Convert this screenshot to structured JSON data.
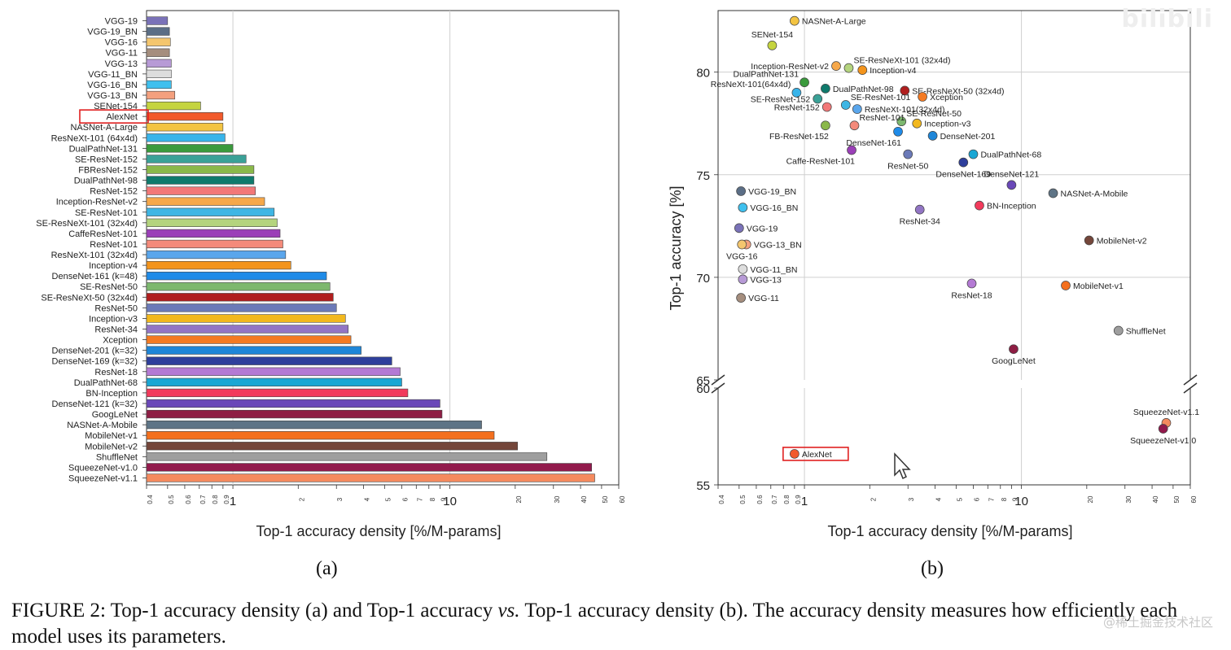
{
  "figure": {
    "subfig_a_label": "(a)",
    "subfig_b_label": "(b)",
    "caption_part1": "FIGURE 2: Top-1 accuracy density (a) and Top-1 accuracy ",
    "caption_vs": "vs.",
    "caption_part2": " Top-1 accuracy density (b). The accuracy density measures how efficiently each model uses its parameters.",
    "watermark_logo": "bilibili",
    "watermark_text": "@稀土掘金技术社区"
  },
  "chart_data": [
    {
      "type": "bar",
      "orientation": "horizontal",
      "xlabel": "Top-1 accuracy density [%/M-params]",
      "ylabel": "",
      "xscale": "log",
      "xlim": [
        0.4,
        60
      ],
      "x_ticks": [
        0.4,
        0.5,
        0.6,
        0.7,
        0.8,
        0.9,
        1,
        2,
        3,
        4,
        5,
        6,
        7,
        8,
        9,
        10,
        20,
        30,
        40,
        50,
        60
      ],
      "grid": "vertical at 1 and 10",
      "highlighted": "AlexNet",
      "bars": [
        {
          "name": "VGG-19",
          "value": 0.5,
          "color": "#7a72b8"
        },
        {
          "name": "VGG-19_BN",
          "value": 0.51,
          "color": "#5b6e86"
        },
        {
          "name": "VGG-16",
          "value": 0.515,
          "color": "#f4c66e"
        },
        {
          "name": "VGG-11",
          "value": 0.51,
          "color": "#a58e7e"
        },
        {
          "name": "VGG-13",
          "value": 0.52,
          "color": "#b79ad6"
        },
        {
          "name": "VGG-11_BN",
          "value": 0.52,
          "color": "#dddddd"
        },
        {
          "name": "VGG-16_BN",
          "value": 0.52,
          "color": "#3fc0ee"
        },
        {
          "name": "VGG-13_BN",
          "value": 0.54,
          "color": "#f4a07e"
        },
        {
          "name": "SENet-154",
          "value": 0.71,
          "color": "#c5d43f"
        },
        {
          "name": "AlexNet",
          "value": 0.9,
          "color": "#f25a2b"
        },
        {
          "name": "NASNet-A-Large",
          "value": 0.9,
          "color": "#f3c442"
        },
        {
          "name": "ResNeXt-101 (64x4d)",
          "value": 0.92,
          "color": "#38b4ea"
        },
        {
          "name": "DualPathNet-131",
          "value": 1.0,
          "color": "#3a9a3c"
        },
        {
          "name": "SE-ResNet-152",
          "value": 1.15,
          "color": "#3aa197"
        },
        {
          "name": "FBResNet-152",
          "value": 1.25,
          "color": "#8ab84a"
        },
        {
          "name": "DualPathNet-98",
          "value": 1.25,
          "color": "#0f7a6c"
        },
        {
          "name": "ResNet-152",
          "value": 1.27,
          "color": "#f27878"
        },
        {
          "name": "Inception-ResNet-v2",
          "value": 1.4,
          "color": "#f6a84a"
        },
        {
          "name": "SE-ResNet-101",
          "value": 1.55,
          "color": "#3fb6e4"
        },
        {
          "name": "SE-ResNeXt-101 (32x4d)",
          "value": 1.6,
          "color": "#b4d47e"
        },
        {
          "name": "CaffeResNet-101",
          "value": 1.65,
          "color": "#9b3fb8"
        },
        {
          "name": "ResNet-101",
          "value": 1.7,
          "color": "#f48a7a"
        },
        {
          "name": "ResNeXt-101 (32x4d)",
          "value": 1.75,
          "color": "#5aa6ec"
        },
        {
          "name": "Inception-v4",
          "value": 1.85,
          "color": "#f3941c"
        },
        {
          "name": "DenseNet-161 (k=48)",
          "value": 2.7,
          "color": "#1f8be8"
        },
        {
          "name": "SE-ResNet-50",
          "value": 2.8,
          "color": "#7db86e"
        },
        {
          "name": "SE-ResNeXt-50 (32x4d)",
          "value": 2.9,
          "color": "#b01e1e"
        },
        {
          "name": "ResNet-50",
          "value": 3.0,
          "color": "#6b7ab8"
        },
        {
          "name": "Inception-v3",
          "value": 3.3,
          "color": "#f2b81e"
        },
        {
          "name": "ResNet-34",
          "value": 3.4,
          "color": "#9275c4"
        },
        {
          "name": "Xception",
          "value": 3.5,
          "color": "#f47a22"
        },
        {
          "name": "DenseNet-201 (k=32)",
          "value": 3.9,
          "color": "#1e86d8"
        },
        {
          "name": "DenseNet-169 (k=32)",
          "value": 5.4,
          "color": "#2e3f9c"
        },
        {
          "name": "ResNet-18",
          "value": 5.9,
          "color": "#b47ad4"
        },
        {
          "name": "DualPathNet-68",
          "value": 6.0,
          "color": "#1aa7d4"
        },
        {
          "name": "BN-Inception",
          "value": 6.4,
          "color": "#f23a5c"
        },
        {
          "name": "DenseNet-121 (k=32)",
          "value": 9.0,
          "color": "#6a48b8"
        },
        {
          "name": "GoogLeNet",
          "value": 9.2,
          "color": "#8e1e44"
        },
        {
          "name": "NASNet-A-Mobile",
          "value": 14.0,
          "color": "#5e7486"
        },
        {
          "name": "MobileNet-v1",
          "value": 16.0,
          "color": "#f4701e"
        },
        {
          "name": "MobileNet-v2",
          "value": 20.5,
          "color": "#74463a"
        },
        {
          "name": "ShuffleNet",
          "value": 28.0,
          "color": "#9e9e9e"
        },
        {
          "name": "SqueezeNet-v1.0",
          "value": 45.0,
          "color": "#921a4c"
        },
        {
          "name": "SqueezeNet-v1.1",
          "value": 46.5,
          "color": "#f48a5e"
        }
      ]
    },
    {
      "type": "scatter",
      "xlabel": "Top-1 accuracy density [%/M-params]",
      "ylabel": "Top-1 accuracy [%]",
      "xscale": "log",
      "xlim": [
        0.4,
        60
      ],
      "x_ticks": [
        0.4,
        0.5,
        0.6,
        0.7,
        0.8,
        0.9,
        1,
        2,
        3,
        4,
        5,
        6,
        7,
        8,
        9,
        10,
        20,
        30,
        40,
        50,
        60
      ],
      "y_axis_break": true,
      "ylim_upper": [
        65,
        83
      ],
      "ylim_lower": [
        55,
        60
      ],
      "y_ticks_upper": [
        65,
        70,
        75,
        80
      ],
      "y_ticks_lower": [
        55,
        60
      ],
      "grid": "at x=1,10 and y=70,75,80",
      "highlighted": "AlexNet",
      "points": [
        {
          "name": "NASNet-A-Large",
          "x": 0.9,
          "y": 82.5,
          "color": "#f3c442",
          "label_pos": "right"
        },
        {
          "name": "SENet-154",
          "x": 0.71,
          "y": 81.3,
          "color": "#c5d43f",
          "label_pos": "above"
        },
        {
          "name": "Inception-ResNet-v2",
          "x": 1.4,
          "y": 80.3,
          "color": "#f6a84a",
          "label_pos": "left"
        },
        {
          "name": "SE-ResNeXt-101 (32x4d)",
          "x": 1.6,
          "y": 80.2,
          "color": "#b4d47e",
          "label_pos": "upright"
        },
        {
          "name": "Inception-v4",
          "x": 1.85,
          "y": 80.1,
          "color": "#f3941c",
          "label_pos": "right"
        },
        {
          "name": "DualPathNet-131",
          "x": 1.0,
          "y": 79.5,
          "color": "#3a9a3c",
          "label_pos": "upleft"
        },
        {
          "name": "DualPathNet-98",
          "x": 1.25,
          "y": 79.2,
          "color": "#0f7a6c",
          "label_pos": "right"
        },
        {
          "name": "SE-ResNeXt-50 (32x4d)",
          "x": 2.9,
          "y": 79.1,
          "color": "#b01e1e",
          "label_pos": "right"
        },
        {
          "name": "ResNeXt-101(64x4d)",
          "x": 0.92,
          "y": 79.0,
          "color": "#38b4ea",
          "label_pos": "upleft"
        },
        {
          "name": "Xception",
          "x": 3.5,
          "y": 78.8,
          "color": "#f47a22",
          "label_pos": "right"
        },
        {
          "name": "SE-ResNet-101",
          "x": 1.55,
          "y": 78.4,
          "color": "#3fb6e4",
          "label_pos": "upright"
        },
        {
          "name": "SE-ResNet-152",
          "x": 1.15,
          "y": 78.7,
          "color": "#3aa197",
          "label_pos": "left"
        },
        {
          "name": "ResNeXt-101(32x4d)",
          "x": 1.75,
          "y": 78.2,
          "color": "#5aa6ec",
          "label_pos": "right"
        },
        {
          "name": "ResNet-152",
          "x": 1.27,
          "y": 78.3,
          "color": "#f27878",
          "label_pos": "left"
        },
        {
          "name": "SE-ResNet-50",
          "x": 2.8,
          "y": 77.6,
          "color": "#7db86e",
          "label_pos": "upright"
        },
        {
          "name": "ResNet-101",
          "x": 1.7,
          "y": 77.4,
          "color": "#f48a7a",
          "label_pos": "upright"
        },
        {
          "name": "FB-ResNet-152",
          "x": 1.25,
          "y": 77.4,
          "color": "#8ab84a",
          "label_pos": "belowleft"
        },
        {
          "name": "Inception-v3",
          "x": 3.3,
          "y": 77.5,
          "color": "#f2b81e",
          "label_pos": "right"
        },
        {
          "name": "DenseNet-161",
          "x": 2.7,
          "y": 77.1,
          "color": "#1f8be8",
          "label_pos": "belowleft"
        },
        {
          "name": "DenseNet-201",
          "x": 3.9,
          "y": 76.9,
          "color": "#1e86d8",
          "label_pos": "right"
        },
        {
          "name": "Caffe-ResNet-101",
          "x": 1.65,
          "y": 76.2,
          "color": "#9b3fb8",
          "label_pos": "belowleft"
        },
        {
          "name": "ResNet-50",
          "x": 3.0,
          "y": 76.0,
          "color": "#6b7ab8",
          "label_pos": "below"
        },
        {
          "name": "DualPathNet-68",
          "x": 6.0,
          "y": 76.0,
          "color": "#1aa7d4",
          "label_pos": "right"
        },
        {
          "name": "DenseNet-169",
          "x": 5.4,
          "y": 75.6,
          "color": "#2e3f9c",
          "label_pos": "below"
        },
        {
          "name": "DenseNet-121",
          "x": 9.0,
          "y": 74.5,
          "color": "#6a48b8",
          "label_pos": "above"
        },
        {
          "name": "NASNet-A-Mobile",
          "x": 14.0,
          "y": 74.1,
          "color": "#5e7486",
          "label_pos": "right"
        },
        {
          "name": "VGG-19_BN",
          "x": 0.51,
          "y": 74.2,
          "color": "#5b6e86",
          "label_pos": "right"
        },
        {
          "name": "VGG-16_BN",
          "x": 0.52,
          "y": 73.4,
          "color": "#3fc0ee",
          "label_pos": "right"
        },
        {
          "name": "BN-Inception",
          "x": 6.4,
          "y": 73.5,
          "color": "#f23a5c",
          "label_pos": "right"
        },
        {
          "name": "ResNet-34",
          "x": 3.4,
          "y": 73.3,
          "color": "#9275c4",
          "label_pos": "below"
        },
        {
          "name": "VGG-19",
          "x": 0.5,
          "y": 72.4,
          "color": "#7a72b8",
          "label_pos": "right"
        },
        {
          "name": "MobileNet-v2",
          "x": 20.5,
          "y": 71.8,
          "color": "#74463a",
          "label_pos": "right"
        },
        {
          "name": "VGG-13_BN",
          "x": 0.54,
          "y": 71.6,
          "color": "#f4a07e",
          "label_pos": "right"
        },
        {
          "name": "VGG-16",
          "x": 0.515,
          "y": 71.6,
          "color": "#f4c66e",
          "label_pos": "below"
        },
        {
          "name": "VGG-11_BN",
          "x": 0.52,
          "y": 70.4,
          "color": "#dddddd",
          "label_pos": "right"
        },
        {
          "name": "VGG-13",
          "x": 0.52,
          "y": 69.9,
          "color": "#b79ad6",
          "label_pos": "right"
        },
        {
          "name": "ResNet-18",
          "x": 5.9,
          "y": 69.7,
          "color": "#b47ad4",
          "label_pos": "below"
        },
        {
          "name": "MobileNet-v1",
          "x": 16.0,
          "y": 69.6,
          "color": "#f4701e",
          "label_pos": "right"
        },
        {
          "name": "VGG-11",
          "x": 0.51,
          "y": 69.0,
          "color": "#a58e7e",
          "label_pos": "right"
        },
        {
          "name": "ShuffleNet",
          "x": 28.0,
          "y": 67.4,
          "color": "#9e9e9e",
          "label_pos": "right"
        },
        {
          "name": "GoogLeNet",
          "x": 9.2,
          "y": 66.5,
          "color": "#8e1e44",
          "label_pos": "below"
        },
        {
          "name": "SqueezeNet-v1.1",
          "x": 46.5,
          "y": 58.2,
          "color": "#f48a5e",
          "label_pos": "above"
        },
        {
          "name": "SqueezeNet-v1.0",
          "x": 45.0,
          "y": 57.9,
          "color": "#921a4c",
          "label_pos": "below"
        },
        {
          "name": "AlexNet",
          "x": 0.9,
          "y": 56.6,
          "color": "#f25a2b",
          "label_pos": "right"
        }
      ]
    }
  ]
}
